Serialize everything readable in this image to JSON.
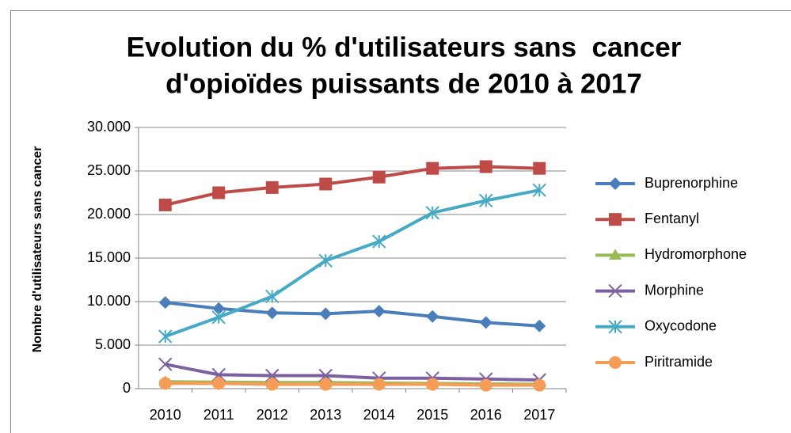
{
  "chart_data": {
    "type": "line",
    "title": [
      "Evolution du % d'utilisateurs sans  cancer",
      "d'opioïdes puissants de 2010 à 2017"
    ],
    "y_label": "Nombre d'utilisateurs sans cancer",
    "categories": [
      "2010",
      "2011",
      "2012",
      "2013",
      "2014",
      "2015",
      "2016",
      "2017"
    ],
    "series": [
      {
        "name": "Buprenorphine",
        "color": "#4a7ebb",
        "marker": "diamond",
        "values": [
          9900,
          9200,
          8700,
          8600,
          8900,
          8300,
          7600,
          7200
        ]
      },
      {
        "name": "Fentanyl",
        "color": "#be4b48",
        "marker": "square",
        "values": [
          21100,
          22500,
          23100,
          23500,
          24300,
          25300,
          25500,
          25300
        ]
      },
      {
        "name": "Hydromorphone",
        "color": "#98b954",
        "marker": "triangle",
        "values": [
          800,
          750,
          700,
          700,
          650,
          600,
          550,
          500
        ]
      },
      {
        "name": "Morphine",
        "color": "#7d60a0",
        "marker": "x",
        "values": [
          2800,
          1600,
          1500,
          1500,
          1200,
          1200,
          1100,
          1000
        ]
      },
      {
        "name": "Oxycodone",
        "color": "#46aac5",
        "marker": "star",
        "values": [
          6000,
          8200,
          10600,
          14700,
          16900,
          20200,
          21600,
          22800
        ]
      },
      {
        "name": "Piritramide",
        "color": "#f59d56",
        "marker": "circle",
        "values": [
          600,
          600,
          500,
          500,
          500,
          500,
          400,
          400
        ]
      }
    ],
    "ylim": [
      0,
      30000
    ],
    "yticks": [
      0,
      {
        "value": 5000,
        "label": "5.000"
      },
      {
        "value": 10000,
        "label": "10.000"
      },
      {
        "value": 15000,
        "label": "15.000"
      },
      {
        "value": 20000,
        "label": "20.000"
      },
      {
        "value": 25000,
        "label": "25.000"
      },
      {
        "value": 30000,
        "label": "30.000"
      }
    ],
    "grid": true,
    "legend": "right"
  }
}
